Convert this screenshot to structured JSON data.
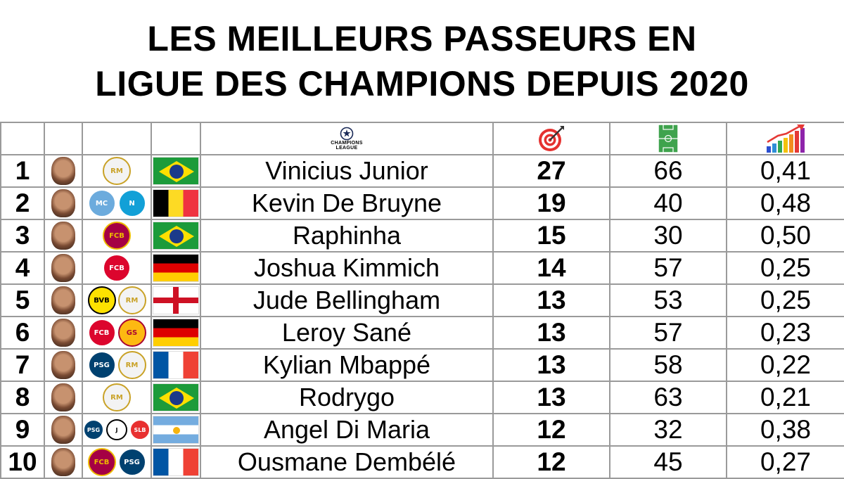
{
  "title": {
    "line1": "LES MEILLEURS PASSEURS EN",
    "line2": "LIGUE DES CHAMPIONS DEPUIS 2020"
  },
  "header": {
    "competition_label_1": "CHAMPIONS",
    "competition_label_2": "LEAGUE",
    "icons": [
      "champions-league-logo",
      "target-icon",
      "football-pitch-icon",
      "growth-chart-icon"
    ]
  },
  "rows": [
    {
      "rank": "1",
      "name": "Vinicius Junior",
      "assists": "27",
      "matches": "66",
      "ratio": "0,41",
      "flag": "br",
      "clubs": [
        {
          "abbr": "RM",
          "icon": "real-madrid-crest",
          "bg": "#f3f3f3",
          "fg": "#c9a227"
        }
      ]
    },
    {
      "rank": "2",
      "name": "Kevin De Bruyne",
      "assists": "19",
      "matches": "40",
      "ratio": "0,48",
      "flag": "be",
      "clubs": [
        {
          "abbr": "MC",
          "icon": "manchester-city-crest",
          "bg": "#6cabdd",
          "fg": "#ffffff"
        },
        {
          "abbr": "N",
          "icon": "napoli-crest",
          "bg": "#12a0d7",
          "fg": "#ffffff"
        }
      ]
    },
    {
      "rank": "3",
      "name": "Raphinha",
      "assists": "15",
      "matches": "30",
      "ratio": "0,50",
      "flag": "br",
      "clubs": [
        {
          "abbr": "FCB",
          "icon": "barcelona-crest",
          "bg": "#a50044",
          "fg": "#edbb00"
        }
      ]
    },
    {
      "rank": "4",
      "name": "Joshua Kimmich",
      "assists": "14",
      "matches": "57",
      "ratio": "0,25",
      "flag": "de",
      "clubs": [
        {
          "abbr": "FCB",
          "icon": "bayern-munich-crest",
          "bg": "#dc052d",
          "fg": "#ffffff"
        }
      ]
    },
    {
      "rank": "5",
      "name": "Jude Bellingham",
      "assists": "13",
      "matches": "53",
      "ratio": "0,25",
      "flag": "en",
      "clubs": [
        {
          "abbr": "BVB",
          "icon": "dortmund-crest",
          "bg": "#fde100",
          "fg": "#000000"
        },
        {
          "abbr": "RM",
          "icon": "real-madrid-crest",
          "bg": "#f3f3f3",
          "fg": "#c9a227"
        }
      ]
    },
    {
      "rank": "6",
      "name": "Leroy Sané",
      "assists": "13",
      "matches": "57",
      "ratio": "0,23",
      "flag": "de",
      "clubs": [
        {
          "abbr": "FCB",
          "icon": "bayern-munich-crest",
          "bg": "#dc052d",
          "fg": "#ffffff"
        },
        {
          "abbr": "GS",
          "icon": "galatasaray-crest",
          "bg": "#fdb912",
          "fg": "#a90432"
        }
      ]
    },
    {
      "rank": "7",
      "name": "Kylian Mbappé",
      "assists": "13",
      "matches": "58",
      "ratio": "0,22",
      "flag": "fr",
      "clubs": [
        {
          "abbr": "PSG",
          "icon": "psg-crest",
          "bg": "#004170",
          "fg": "#ffffff"
        },
        {
          "abbr": "RM",
          "icon": "real-madrid-crest",
          "bg": "#f3f3f3",
          "fg": "#c9a227"
        }
      ]
    },
    {
      "rank": "8",
      "name": "Rodrygo",
      "assists": "13",
      "matches": "63",
      "ratio": "0,21",
      "flag": "br",
      "clubs": [
        {
          "abbr": "RM",
          "icon": "real-madrid-crest",
          "bg": "#f3f3f3",
          "fg": "#c9a227"
        }
      ]
    },
    {
      "rank": "9",
      "name": "Angel Di Maria",
      "assists": "12",
      "matches": "32",
      "ratio": "0,38",
      "flag": "ar",
      "clubs": [
        {
          "abbr": "PSG",
          "icon": "psg-crest",
          "bg": "#004170",
          "fg": "#ffffff"
        },
        {
          "abbr": "J",
          "icon": "juventus-crest",
          "bg": "#ffffff",
          "fg": "#000000"
        },
        {
          "abbr": "SLB",
          "icon": "benfica-crest",
          "bg": "#e83030",
          "fg": "#ffffff"
        }
      ]
    },
    {
      "rank": "10",
      "name": "Ousmane Dembélé",
      "assists": "12",
      "matches": "45",
      "ratio": "0,27",
      "flag": "fr",
      "clubs": [
        {
          "abbr": "FCB",
          "icon": "barcelona-crest",
          "bg": "#a50044",
          "fg": "#edbb00"
        },
        {
          "abbr": "PSG",
          "icon": "psg-crest",
          "bg": "#004170",
          "fg": "#ffffff"
        }
      ]
    }
  ]
}
